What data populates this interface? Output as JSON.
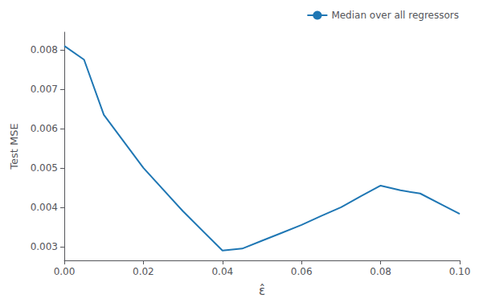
{
  "chart_data": {
    "type": "line",
    "x_label": "ε̂",
    "y_label": "Test MSE",
    "x": [
      0.0,
      0.005,
      0.01,
      0.02,
      0.03,
      0.04,
      0.045,
      0.05,
      0.055,
      0.06,
      0.065,
      0.07,
      0.075,
      0.08,
      0.085,
      0.09,
      0.1
    ],
    "series": [
      {
        "name": "Median over all regressors",
        "color": "#1f77b4",
        "marker": "none",
        "line_style": "solid",
        "values": [
          0.0081,
          0.00775,
          0.00635,
          0.005,
          0.0039,
          0.0029,
          0.00295,
          0.00315,
          0.00335,
          0.00355,
          0.00378,
          0.004,
          0.00428,
          0.00455,
          0.00443,
          0.00435,
          0.00383
        ]
      }
    ],
    "xlim": [
      0.0,
      0.1
    ],
    "ylim": [
      0.00265,
      0.00845
    ],
    "xticks": [
      {
        "value": 0.0,
        "label": "0.00"
      },
      0.02,
      0.04,
      0.06,
      0.08,
      {
        "value": 0.1,
        "label": "0.10"
      }
    ],
    "yticks": [
      0.003,
      0.004,
      0.005,
      0.006,
      0.007,
      0.008
    ],
    "legend": "upper right",
    "grid": false
  }
}
